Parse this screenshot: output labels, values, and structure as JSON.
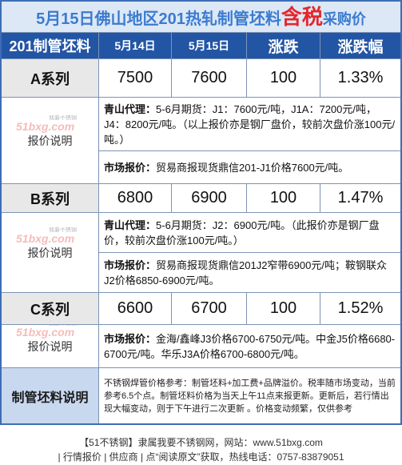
{
  "title": {
    "prefix": "5月15日佛山地区201热轧制管坯料",
    "highlight": "含税",
    "suffix": "采购价"
  },
  "header": {
    "cols": [
      "201制管坯料",
      "5月14日",
      "5月15日",
      "涨跌",
      "涨跌幅"
    ]
  },
  "rows": [
    {
      "name": "A系列",
      "prev_price": "7500",
      "curr_price": "7600",
      "change": "100",
      "change_pct": "1.33%",
      "note_label": "报价说明",
      "notes": [
        {
          "label": "青山代理：",
          "text": "5-6月期货：J1：7600元/吨，J1A：7200元/吨，J4：8200元/吨。（以上报价亦是钢厂盘价，较前次盘价涨100元/吨。）"
        },
        {
          "label": "市场报价：",
          "text": "贸易商报现货鼎信201-J1价格7600元/吨。"
        }
      ]
    },
    {
      "name": "B系列",
      "prev_price": "6800",
      "curr_price": "6900",
      "change": "100",
      "change_pct": "1.47%",
      "note_label": "报价说明",
      "notes": [
        {
          "label": "青山代理：",
          "text": "5-6月期货：J2：6900元/吨。（此报价亦是钢厂盘价，较前次盘价涨100元/吨。）"
        },
        {
          "label": "市场报价：",
          "text": "贸易商报现货鼎信201J2窄带6900元/吨；鞍钢联众J2价格6850-6900元/吨。"
        }
      ]
    },
    {
      "name": "C系列",
      "prev_price": "6600",
      "curr_price": "6700",
      "change": "100",
      "change_pct": "1.52%",
      "note_label": "报价说明",
      "notes": [
        {
          "label": "市场报价：",
          "text": "金海/鑫峰J3价格6700-6750元/吨。中金J5价格6680-6700元/吨。华乐J3A价格6700-6800元/吨。"
        }
      ]
    }
  ],
  "explanation": {
    "label": "制管坯料说明",
    "text": "不锈钢焊管价格参考：制管坯料+加工费+品牌溢价。税率随市场变动，当前参考6.5个点。制管坯料价格为当天上午11点来报更新。更新后，若行情出现大幅变动，则于下午进行二次更新 。价格变动频繁，仅供参考"
  },
  "watermark": {
    "tagline": "我要不锈钢",
    "brand": "51bxg.com"
  },
  "footer": {
    "line1": "【51不锈钢】隶属我要不锈钢网，网站：www.51bxg.com",
    "line2": "| 行情报价 | 供应商 | 点“阅读原文”获取，热线电话：0757-83879051"
  },
  "colors": {
    "title_text": "#3b7bd0",
    "title_highlight": "#e5262b",
    "title_bg": "#dce8f6",
    "header_bg": "#2355a5",
    "series_label_bg": "#e8e8e8",
    "explanation_label_bg": "#c7d8ef",
    "border": "#3e6db5",
    "grid_line": "#7d93b6"
  }
}
